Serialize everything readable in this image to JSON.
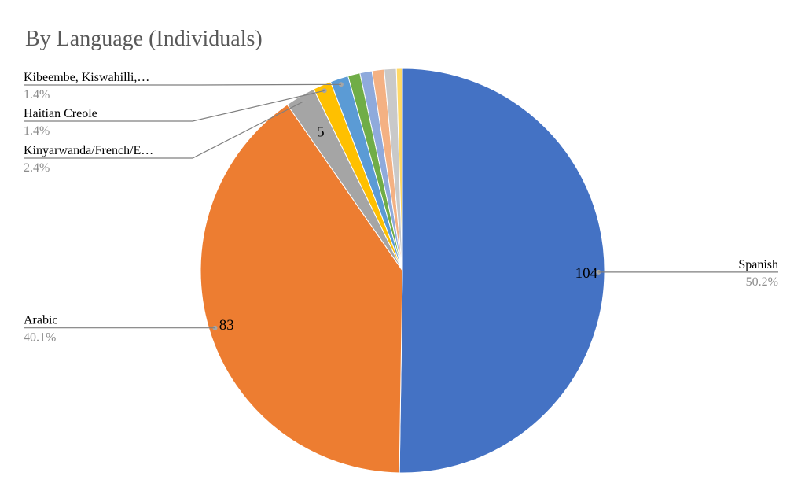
{
  "chart_data": {
    "type": "pie",
    "title": "By Language (Individuals)",
    "slices": [
      {
        "label": "Spanish",
        "value": 104,
        "percent": "50.2%",
        "color": "#4472C4"
      },
      {
        "label": "Arabic",
        "value": 83,
        "percent": "40.1%",
        "color": "#ED7D31"
      },
      {
        "label": "Kinyarwanda/French/E…",
        "value": 5,
        "percent": "2.4%",
        "color": "#A5A5A5"
      },
      {
        "label": "Haitian Creole",
        "value": 3,
        "percent": "1.4%",
        "color": "#FFC000"
      },
      {
        "label": "Kibeembe, Kiswahilli,…",
        "value": 3,
        "percent": "1.4%",
        "color": "#5B9BD5"
      },
      {
        "label": "",
        "value": 2,
        "percent": "",
        "color": "#70AD47"
      },
      {
        "label": "",
        "value": 2,
        "percent": "",
        "color": "#8FAADC"
      },
      {
        "label": "",
        "value": 2,
        "percent": "",
        "color": "#F4B183"
      },
      {
        "label": "",
        "value": 2,
        "percent": "",
        "color": "#C9C9C9"
      },
      {
        "label": "",
        "value": 1,
        "percent": "",
        "color": "#FFD966"
      }
    ],
    "data_labels": [
      "104",
      "83",
      "5"
    ],
    "start_angle": "12 o'clock",
    "direction": "clockwise",
    "legend": "none"
  }
}
